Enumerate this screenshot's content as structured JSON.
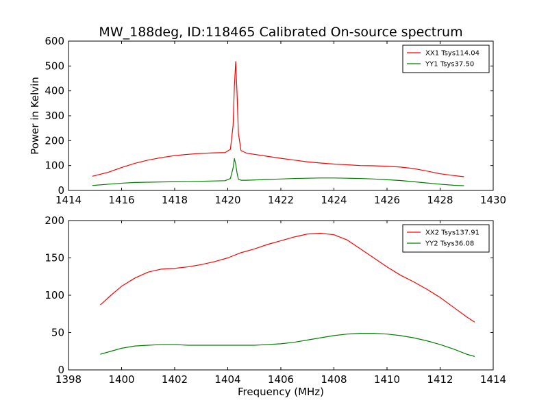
{
  "figure": {
    "title": "MW_188deg, ID:118465 Calibrated On-source spectrum"
  },
  "chart_data": [
    {
      "type": "line",
      "ylabel": "Power in Kelvin",
      "xlabel": "",
      "xlim": [
        1414,
        1430
      ],
      "ylim": [
        0,
        600
      ],
      "xticks": [
        1414,
        1416,
        1418,
        1420,
        1422,
        1424,
        1426,
        1428,
        1430
      ],
      "yticks": [
        0,
        100,
        200,
        300,
        400,
        500,
        600
      ],
      "legend_position": "top-right",
      "grid": false,
      "series": [
        {
          "name": "XX1 Tsys114.04",
          "color": "#ff0000",
          "x": [
            1414.9,
            1415.5,
            1416.0,
            1416.5,
            1417.0,
            1417.5,
            1418.0,
            1418.5,
            1419.0,
            1419.5,
            1419.9,
            1420.1,
            1420.2,
            1420.25,
            1420.3,
            1420.35,
            1420.4,
            1420.5,
            1420.7,
            1421.0,
            1421.5,
            1422.0,
            1422.5,
            1423.0,
            1423.5,
            1424.0,
            1424.5,
            1425.0,
            1425.5,
            1426.0,
            1426.5,
            1427.0,
            1427.5,
            1428.0,
            1428.5,
            1428.9
          ],
          "y": [
            57,
            73,
            92,
            109,
            122,
            132,
            140,
            145,
            149,
            151,
            152,
            165,
            260,
            420,
            518,
            390,
            230,
            160,
            150,
            145,
            137,
            129,
            122,
            115,
            110,
            106,
            103,
            100,
            99,
            97,
            94,
            88,
            78,
            67,
            60,
            55
          ]
        },
        {
          "name": "YY1 Tsys37.50",
          "color": "#008000",
          "x": [
            1414.9,
            1415.5,
            1416.0,
            1416.5,
            1417.0,
            1417.5,
            1418.0,
            1418.5,
            1419.0,
            1419.5,
            1419.9,
            1420.1,
            1420.2,
            1420.25,
            1420.3,
            1420.35,
            1420.4,
            1420.5,
            1420.7,
            1421.0,
            1421.5,
            1422.0,
            1422.5,
            1423.0,
            1423.5,
            1424.0,
            1424.5,
            1425.0,
            1425.5,
            1426.0,
            1426.5,
            1427.0,
            1427.5,
            1428.0,
            1428.5,
            1428.9
          ],
          "y": [
            20,
            25,
            29,
            32,
            33,
            34,
            35,
            36,
            37,
            38,
            39,
            48,
            90,
            128,
            105,
            70,
            45,
            41,
            41,
            42,
            44,
            46,
            48,
            49,
            50,
            50,
            49,
            48,
            46,
            43,
            40,
            35,
            30,
            25,
            21,
            19
          ]
        }
      ]
    },
    {
      "type": "line",
      "xlabel": "Frequency (MHz)",
      "ylabel": "",
      "xlim": [
        1398,
        1414
      ],
      "ylim": [
        0,
        200
      ],
      "xticks": [
        1398,
        1400,
        1402,
        1404,
        1406,
        1408,
        1410,
        1412,
        1414
      ],
      "yticks": [
        0,
        50,
        100,
        150,
        200
      ],
      "legend_position": "top-right",
      "grid": false,
      "series": [
        {
          "name": "XX2 Tsys137.91",
          "color": "#ff0000",
          "x": [
            1399.2,
            1399.6,
            1400.0,
            1400.5,
            1401.0,
            1401.5,
            1402.0,
            1402.5,
            1403.0,
            1403.5,
            1404.0,
            1404.5,
            1405.0,
            1405.5,
            1406.0,
            1406.5,
            1407.0,
            1407.5,
            1408.0,
            1408.5,
            1409.0,
            1409.5,
            1410.0,
            1410.5,
            1411.0,
            1411.5,
            1412.0,
            1412.5,
            1413.0,
            1413.3
          ],
          "y": [
            87,
            100,
            112,
            123,
            131,
            135,
            136,
            138,
            141,
            145,
            150,
            157,
            162,
            168,
            173,
            178,
            182,
            183,
            181,
            174,
            162,
            150,
            138,
            127,
            118,
            108,
            97,
            84,
            71,
            64
          ]
        },
        {
          "name": "YY2 Tsys36.08",
          "color": "#008000",
          "x": [
            1399.2,
            1399.6,
            1400.0,
            1400.5,
            1401.0,
            1401.5,
            1402.0,
            1402.5,
            1403.0,
            1403.5,
            1404.0,
            1404.5,
            1405.0,
            1405.5,
            1406.0,
            1406.5,
            1407.0,
            1407.5,
            1408.0,
            1408.5,
            1409.0,
            1409.5,
            1410.0,
            1410.5,
            1411.0,
            1411.5,
            1412.0,
            1412.5,
            1413.0,
            1413.3
          ],
          "y": [
            21,
            25,
            29,
            32,
            33,
            34,
            34,
            33,
            33,
            33,
            33,
            33,
            33,
            34,
            35,
            37,
            40,
            43,
            46,
            48,
            49,
            49,
            48,
            46,
            43,
            39,
            34,
            28,
            21,
            18
          ]
        }
      ]
    }
  ]
}
